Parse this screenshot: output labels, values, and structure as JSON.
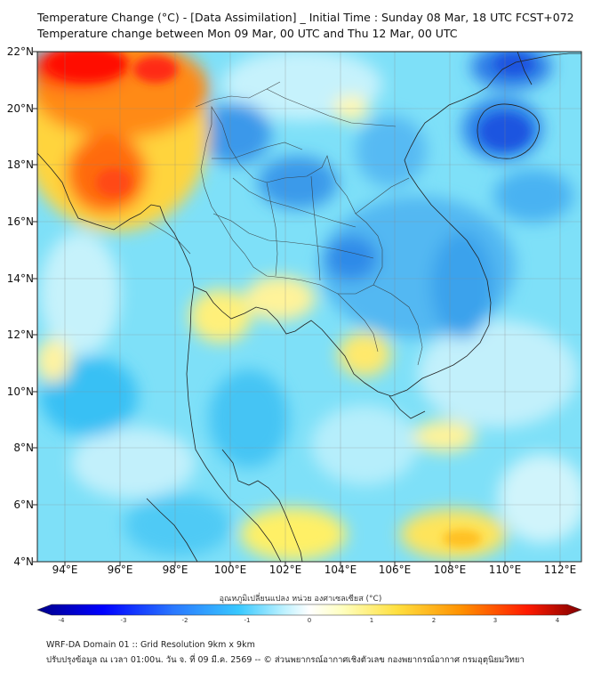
{
  "header": {
    "title": "Temperature Change (°C) - [Data Assimilation] _ Initial Time : Sunday 08 Mar, 18 UTC FCST+072",
    "subtitle": "Temperature change between Mon 09 Mar, 00 UTC and Thu 12 Mar, 00 UTC"
  },
  "map": {
    "lat_labels": [
      "22°N",
      "20°N",
      "18°N",
      "16°N",
      "14°N",
      "12°N",
      "10°N",
      "8°N",
      "6°N",
      "4°N"
    ],
    "lon_labels": [
      "94°E",
      "96°E",
      "98°E",
      "100°E",
      "102°E",
      "104°E",
      "106°E",
      "108°E",
      "110°E",
      "112°E"
    ],
    "lat_range": [
      4,
      22.3
    ],
    "lon_range": [
      93,
      112.8
    ]
  },
  "colorbar": {
    "title": "อุณหภูมิเปลี่ยนแปลง หน่วย องศาเซลเซียส (°C)",
    "ticks": [
      "-4",
      "-3",
      "-2",
      "-1",
      "0",
      "1",
      "2",
      "3",
      "4"
    ],
    "min": -4,
    "max": 4,
    "colors": [
      "#00008a",
      "#0000ff",
      "#2a78ff",
      "#38c8ff",
      "#b8f0ff",
      "#ffffff",
      "#ffffc0",
      "#ffe040",
      "#ff9000",
      "#ff1a00",
      "#800000"
    ]
  },
  "footer": {
    "line1": "WRF-DA Domain 01 :: Grid Resolution 9km x 9km",
    "line2": "ปรับปรุงข้อมูล ณ เวลา 01:00น. วัน จ. ที่ 09 มี.ค. 2569 -- © ส่วนพยากรณ์อากาศเชิงตัวเลข กองพยากรณ์อากาศ กรมอุตุนิยมวิทยา"
  }
}
